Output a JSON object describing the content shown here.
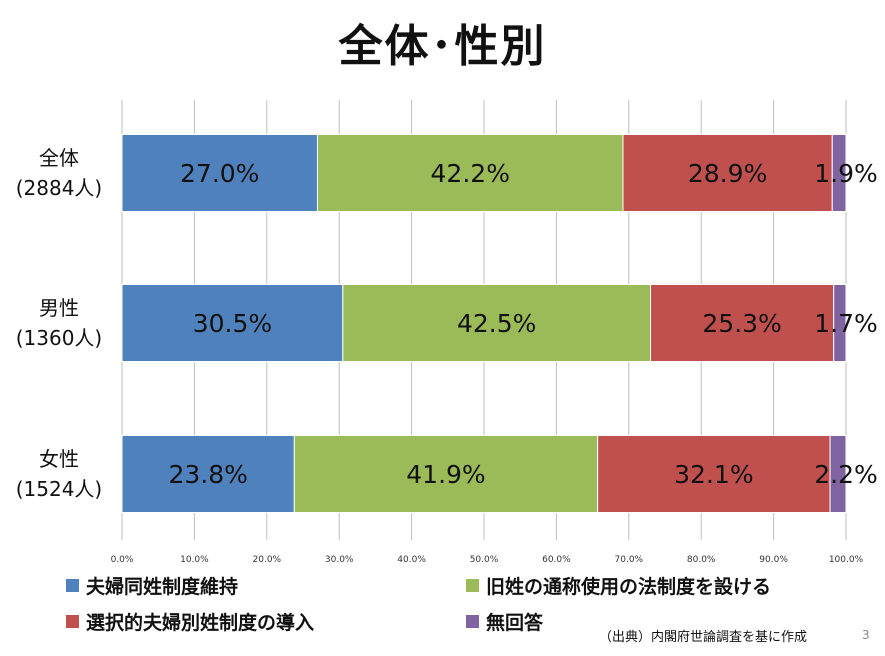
{
  "title": "全体･性別",
  "chart_data": {
    "type": "bar",
    "orientation": "horizontal",
    "stacked": true,
    "percent": true,
    "xlim": [
      0,
      100
    ],
    "x_ticks": [
      "0.0%",
      "10.0%",
      "20.0%",
      "30.0%",
      "40.0%",
      "50.0%",
      "60.0%",
      "70.0%",
      "80.0%",
      "90.0%",
      "100.0%"
    ],
    "grid": true,
    "legend_position": "bottom",
    "categories": [
      {
        "line1": "全体",
        "line2": "(2884人)"
      },
      {
        "line1": "男性",
        "line2": "(1360人)"
      },
      {
        "line1": "女性",
        "line2": "(1524人)"
      }
    ],
    "series": [
      {
        "name": "夫婦同姓制度維持",
        "color": "#4F81BD",
        "values": [
          27.0,
          30.5,
          23.8
        ],
        "labels": [
          "27.0%",
          "30.5%",
          "23.8%"
        ]
      },
      {
        "name": "旧姓の通称使用の法制度を設ける",
        "color": "#9BBB59",
        "values": [
          42.2,
          42.5,
          41.9
        ],
        "labels": [
          "42.2%",
          "42.5%",
          "41.9%"
        ]
      },
      {
        "name": "選択的夫婦別姓制度の導入",
        "color": "#C0504D",
        "values": [
          28.9,
          25.3,
          32.1
        ],
        "labels": [
          "28.9%",
          "25.3%",
          "32.1%"
        ]
      },
      {
        "name": "無回答",
        "color": "#8064A2",
        "values": [
          1.9,
          1.7,
          2.2
        ],
        "labels": [
          "1.9%",
          "1.7%",
          "2.2%"
        ]
      }
    ]
  },
  "source_note": "（出典）内閣府世論調査を基に作成",
  "slide_number": "3"
}
